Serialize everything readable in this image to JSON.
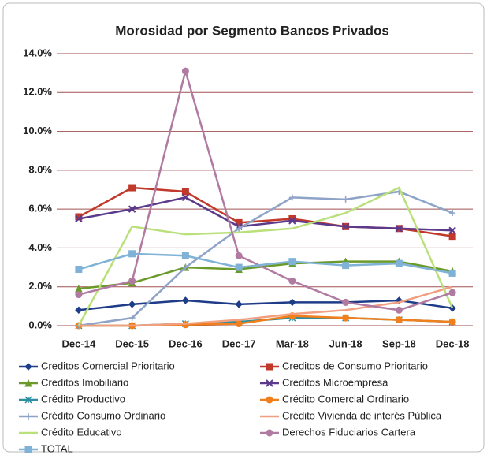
{
  "chart_data": {
    "type": "line",
    "title": "Morosidad por Segmento Bancos Privados",
    "categories": [
      "Dec-14",
      "Dec-15",
      "Dec-16",
      "Dec-17",
      "Mar-18",
      "Jun-18",
      "Sep-18",
      "Dec-18"
    ],
    "ylim": [
      0,
      14
    ],
    "yticks": [
      {
        "value": 0,
        "label": "0.0%"
      },
      {
        "value": 2,
        "label": "2.0%"
      },
      {
        "value": 4,
        "label": "4.0%"
      },
      {
        "value": 6,
        "label": "6.0%"
      },
      {
        "value": 8,
        "label": "8.0%"
      },
      {
        "value": 10,
        "label": "10.0%"
      },
      {
        "value": 12,
        "label": "12.0%"
      },
      {
        "value": 14,
        "label": "14.0%"
      }
    ],
    "grid": true,
    "series": [
      {
        "name": "Creditos Comercial Prioritario",
        "color": "#1f3c88",
        "marker": "diamond",
        "values": [
          0.8,
          1.1,
          1.3,
          1.1,
          1.2,
          1.2,
          1.3,
          0.9
        ]
      },
      {
        "name": "Creditos de Consumo Prioritario",
        "color": "#c0392b",
        "marker": "square",
        "values": [
          5.6,
          7.1,
          6.9,
          5.3,
          5.5,
          5.1,
          5.0,
          4.6
        ]
      },
      {
        "name": "Creditos Imobiliario",
        "color": "#6a9a2a",
        "marker": "triangle",
        "values": [
          1.9,
          2.2,
          3.0,
          2.9,
          3.2,
          3.3,
          3.3,
          2.8
        ]
      },
      {
        "name": "Creditos Microempresa",
        "color": "#5b3a8c",
        "marker": "x",
        "values": [
          5.5,
          6.0,
          6.6,
          5.1,
          5.4,
          5.1,
          5.0,
          4.9
        ]
      },
      {
        "name": "Crédito Productivo",
        "color": "#2a8fa0",
        "marker": "asterisk",
        "values": [
          0,
          0,
          0.1,
          0.2,
          0.4,
          0.4,
          0.3,
          0.2
        ]
      },
      {
        "name": "Crédito Comercial Ordinario",
        "color": "#f07f1c",
        "marker": "circle",
        "values": [
          0,
          0,
          0.05,
          0.1,
          0.5,
          0.4,
          0.3,
          0.2
        ]
      },
      {
        "name": "Crédito Consumo Ordinario",
        "color": "#8ea3c8",
        "marker": "plus",
        "values": [
          0,
          0.4,
          3.0,
          5.0,
          6.6,
          6.5,
          6.9,
          5.8
        ]
      },
      {
        "name": "Crédito Vivienda de interés Pública",
        "color": "#f0a080",
        "marker": "none",
        "values": [
          0,
          0,
          0.1,
          0.3,
          0.6,
          0.8,
          1.2,
          2.0
        ]
      },
      {
        "name": "Crédito Educativo",
        "color": "#b9e07a",
        "marker": "none",
        "values": [
          0,
          5.1,
          4.7,
          4.8,
          5.0,
          5.8,
          7.1,
          0.9
        ]
      },
      {
        "name": "Derechos Fiduciarios Cartera",
        "color": "#b07aa1",
        "marker": "circle",
        "values": [
          1.6,
          2.3,
          13.1,
          3.6,
          2.3,
          1.2,
          0.8,
          1.7
        ]
      },
      {
        "name": "TOTAL",
        "color": "#7fb2d6",
        "marker": "square",
        "values": [
          2.9,
          3.7,
          3.6,
          3.0,
          3.3,
          3.1,
          3.2,
          2.7
        ]
      }
    ]
  }
}
